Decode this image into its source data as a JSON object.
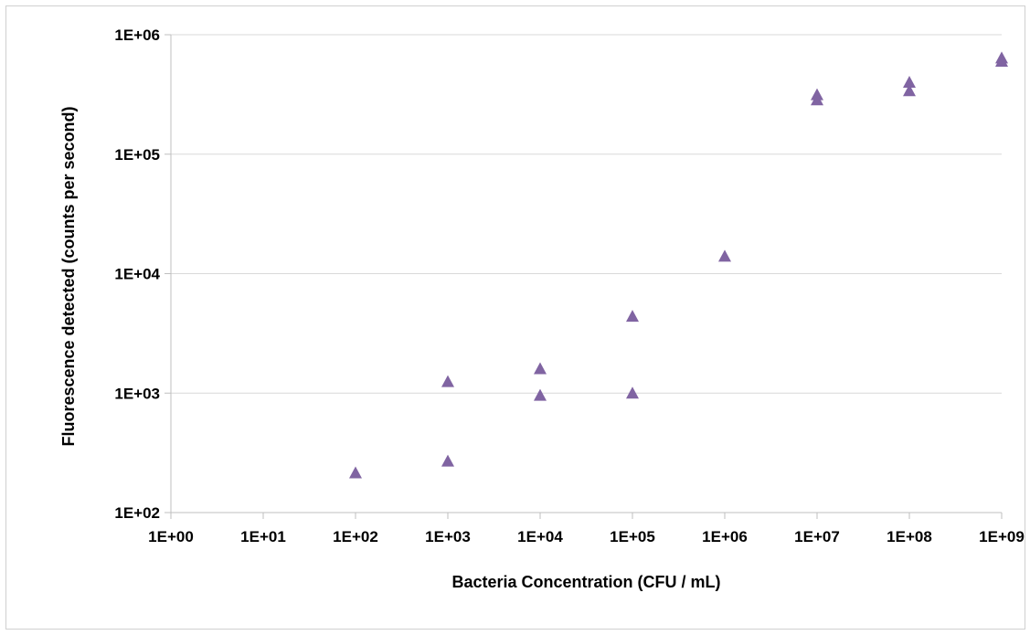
{
  "chart_data": {
    "type": "scatter",
    "title": "",
    "xlabel": "Bacteria Concentration (CFU / mL)",
    "ylabel": "Fluorescence detected (counts per second)",
    "x_scale": "log",
    "y_scale": "log",
    "xlim": [
      1,
      1000000000
    ],
    "ylim": [
      100,
      1000000
    ],
    "x_ticks": [
      {
        "value": 1,
        "label": "1E+00"
      },
      {
        "value": 10,
        "label": "1E+01"
      },
      {
        "value": 100,
        "label": "1E+02"
      },
      {
        "value": 1000,
        "label": "1E+03"
      },
      {
        "value": 10000,
        "label": "1E+04"
      },
      {
        "value": 100000,
        "label": "1E+05"
      },
      {
        "value": 1000000,
        "label": "1E+06"
      },
      {
        "value": 10000000,
        "label": "1E+07"
      },
      {
        "value": 100000000,
        "label": "1E+08"
      },
      {
        "value": 1000000000,
        "label": "1E+09"
      }
    ],
    "y_ticks": [
      {
        "value": 100,
        "label": "1E+02"
      },
      {
        "value": 1000,
        "label": "1E+03"
      },
      {
        "value": 10000,
        "label": "1E+04"
      },
      {
        "value": 100000,
        "label": "1E+05"
      },
      {
        "value": 1000000,
        "label": "1E+06"
      }
    ],
    "grid": {
      "horizontal": true,
      "vertical": false
    },
    "legend": "none",
    "marker": "triangle",
    "marker_color": "#8064a2",
    "axis_color": "#bfbfbf",
    "grid_color": "#d9d9d9",
    "series": [
      {
        "x": [
          100,
          1000,
          1000,
          10000,
          10000,
          100000,
          100000,
          1000000,
          10000000,
          10000000,
          100000000,
          100000000,
          1000000000,
          1000000000
        ],
        "y": [
          215,
          270,
          1250,
          960,
          1600,
          1000,
          4400,
          14000,
          285000,
          315000,
          340000,
          400000,
          600000,
          640000
        ]
      }
    ]
  }
}
